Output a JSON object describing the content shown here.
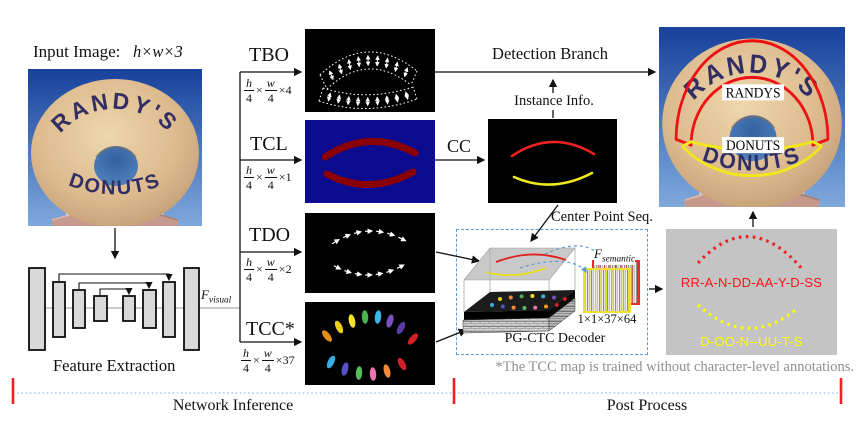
{
  "title": {
    "input_label": "Input Image:",
    "input_dims": "h×w×3"
  },
  "photo": {
    "top_text": "RANDY'S",
    "bottom_text": "DONUTS"
  },
  "feature": {
    "label": "Feature Extraction",
    "fvisual_base": "F",
    "fvisual_sub": "visual"
  },
  "branches": [
    {
      "label": "TBO",
      "n1": "h",
      "d1": "4",
      "t": "×",
      "n2": "w",
      "d2": "4",
      "ch": "×4"
    },
    {
      "label": "TCL",
      "n1": "h",
      "d1": "4",
      "t": "×",
      "n2": "w",
      "d2": "4",
      "ch": "×1"
    },
    {
      "label": "TDO",
      "n1": "h",
      "d1": "4",
      "t": "×",
      "n2": "w",
      "d2": "4",
      "ch": "×2"
    },
    {
      "label": "TCC*",
      "n1": "h",
      "d1": "4",
      "t": "×",
      "n2": "w",
      "d2": "4",
      "ch": "×37"
    }
  ],
  "middle": {
    "detection_branch": "Detection Branch",
    "instance_info": "Instance Info.",
    "cc": "CC",
    "center_point_seq": "Center Point Seq."
  },
  "decoder": {
    "label": "PG-CTC Decoder",
    "fsem_base": "F",
    "fsem_sub": "semantic",
    "dims": "1×1×37×64"
  },
  "results": {
    "top": "RR-A-N-DD-AA-Y-D-SS",
    "bottom": "D-OO-N--UU-T-S"
  },
  "output_image": {
    "top_label": "RANDYS",
    "bottom_label": "DONUTS"
  },
  "footnote": "*The TCC map is trained without character-level annotations.",
  "phases": {
    "left": "Network Inference",
    "right": "Post Process"
  },
  "colors": {
    "tcl_background": "#0b0b8f",
    "centerline_red": "#8b0000",
    "instance_top": "#ee2222",
    "instance_bottom": "#efe91e",
    "result_red": "#ff1515",
    "result_yellow": "#ffff00",
    "decoder_dash": "#5b9bd5",
    "phase_tick": "#ee2222",
    "gray_panel": "#c4c4c4"
  }
}
